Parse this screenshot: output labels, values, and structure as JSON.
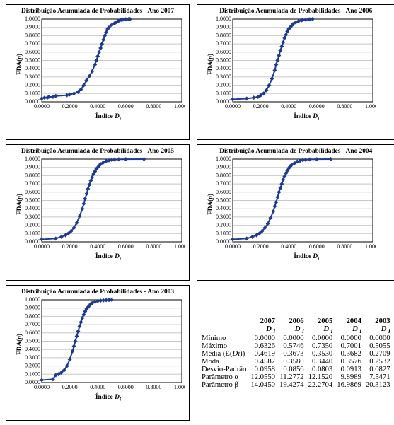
{
  "colors": {
    "series": "#1f3b8f",
    "grid": "#c8c8c8",
    "axis": "#000000",
    "bg": "#ffffff"
  },
  "axis": {
    "xlim": [
      0.0,
      1.0
    ],
    "ylim": [
      0.0,
      1.0
    ],
    "yticks": [
      0.0,
      0.1,
      0.2,
      0.3,
      0.4,
      0.5,
      0.6,
      0.7,
      0.8,
      0.9,
      1.0
    ],
    "ytick_labels": [
      "0.0000",
      "0.1000",
      "0.2000",
      "0.3000",
      "0.4000",
      "0.5000",
      "0.6000",
      "0.7000",
      "0.8000",
      "0.9000",
      "1.0000"
    ],
    "xticks": [
      0.0,
      0.2,
      0.4,
      0.6,
      0.8,
      1.0
    ],
    "xtick_labels": [
      "0.0000",
      "0.2000",
      "0.4000",
      "0.6000",
      "0.8000",
      "1.0000"
    ],
    "ylabel_html": "FDA(<i>p</i>)",
    "xlabel_html": "Índice <i>D<sub>i</sub></i>",
    "label_fontsize": 7,
    "tick_fontsize": 6,
    "title_fontsize": 7
  },
  "plot": {
    "line_width": 2,
    "marker_size": 3,
    "marker_shape": "diamond"
  },
  "charts": [
    {
      "title": "Distribuição Acumulada de Probabilidades - Ano 2007",
      "year": 2007,
      "points": [
        [
          0.0,
          0.04
        ],
        [
          0.02,
          0.05
        ],
        [
          0.04,
          0.05
        ],
        [
          0.05,
          0.06
        ],
        [
          0.08,
          0.06
        ],
        [
          0.1,
          0.07
        ],
        [
          0.18,
          0.08
        ],
        [
          0.2,
          0.09
        ],
        [
          0.23,
          0.1
        ],
        [
          0.26,
          0.12
        ],
        [
          0.28,
          0.15
        ],
        [
          0.3,
          0.2
        ],
        [
          0.32,
          0.26
        ],
        [
          0.34,
          0.31
        ],
        [
          0.36,
          0.37
        ],
        [
          0.38,
          0.45
        ],
        [
          0.39,
          0.5
        ],
        [
          0.4,
          0.55
        ],
        [
          0.41,
          0.6
        ],
        [
          0.42,
          0.65
        ],
        [
          0.43,
          0.7
        ],
        [
          0.44,
          0.75
        ],
        [
          0.45,
          0.8
        ],
        [
          0.46,
          0.84
        ],
        [
          0.47,
          0.88
        ],
        [
          0.48,
          0.9
        ],
        [
          0.5,
          0.93
        ],
        [
          0.52,
          0.95
        ],
        [
          0.53,
          0.96
        ],
        [
          0.54,
          0.97
        ],
        [
          0.55,
          0.98
        ],
        [
          0.56,
          0.99
        ],
        [
          0.57,
          0.99
        ],
        [
          0.58,
          0.995
        ],
        [
          0.6,
          0.998
        ],
        [
          0.62,
          0.999
        ],
        [
          0.63,
          1.0
        ]
      ]
    },
    {
      "title": "Distribuição Acumulada de Probabilidades - Ano 2006",
      "year": 2006,
      "points": [
        [
          0.0,
          0.03
        ],
        [
          0.1,
          0.04
        ],
        [
          0.15,
          0.05
        ],
        [
          0.18,
          0.06
        ],
        [
          0.2,
          0.08
        ],
        [
          0.22,
          0.1
        ],
        [
          0.24,
          0.14
        ],
        [
          0.26,
          0.2
        ],
        [
          0.28,
          0.28
        ],
        [
          0.3,
          0.38
        ],
        [
          0.31,
          0.45
        ],
        [
          0.32,
          0.5
        ],
        [
          0.33,
          0.56
        ],
        [
          0.34,
          0.62
        ],
        [
          0.35,
          0.67
        ],
        [
          0.36,
          0.72
        ],
        [
          0.37,
          0.77
        ],
        [
          0.38,
          0.81
        ],
        [
          0.39,
          0.85
        ],
        [
          0.4,
          0.88
        ],
        [
          0.41,
          0.9
        ],
        [
          0.42,
          0.92
        ],
        [
          0.43,
          0.94
        ],
        [
          0.45,
          0.96
        ],
        [
          0.47,
          0.975
        ],
        [
          0.49,
          0.985
        ],
        [
          0.5,
          0.99
        ],
        [
          0.52,
          0.994
        ],
        [
          0.54,
          0.997
        ],
        [
          0.55,
          0.998
        ],
        [
          0.57,
          1.0
        ]
      ]
    },
    {
      "title": "Distribuição Acumulada de Probabilidades - Ano 2005",
      "year": 2005,
      "points": [
        [
          0.0,
          0.03
        ],
        [
          0.1,
          0.04
        ],
        [
          0.14,
          0.06
        ],
        [
          0.17,
          0.08
        ],
        [
          0.19,
          0.1
        ],
        [
          0.21,
          0.13
        ],
        [
          0.23,
          0.17
        ],
        [
          0.25,
          0.23
        ],
        [
          0.27,
          0.31
        ],
        [
          0.29,
          0.4
        ],
        [
          0.3,
          0.46
        ],
        [
          0.31,
          0.52
        ],
        [
          0.32,
          0.58
        ],
        [
          0.33,
          0.64
        ],
        [
          0.34,
          0.69
        ],
        [
          0.35,
          0.74
        ],
        [
          0.36,
          0.78
        ],
        [
          0.37,
          0.82
        ],
        [
          0.38,
          0.85
        ],
        [
          0.39,
          0.88
        ],
        [
          0.4,
          0.9
        ],
        [
          0.41,
          0.92
        ],
        [
          0.42,
          0.94
        ],
        [
          0.44,
          0.96
        ],
        [
          0.46,
          0.975
        ],
        [
          0.48,
          0.985
        ],
        [
          0.5,
          0.99
        ],
        [
          0.52,
          0.995
        ],
        [
          0.55,
          0.998
        ],
        [
          0.6,
          0.999
        ],
        [
          0.73,
          1.0
        ]
      ]
    },
    {
      "title": "Distribuição Acumulada de Probabilidades - Ano 2004",
      "year": 2004,
      "points": [
        [
          0.0,
          0.03
        ],
        [
          0.1,
          0.04
        ],
        [
          0.14,
          0.06
        ],
        [
          0.17,
          0.08
        ],
        [
          0.19,
          0.1
        ],
        [
          0.21,
          0.13
        ],
        [
          0.23,
          0.17
        ],
        [
          0.25,
          0.22
        ],
        [
          0.27,
          0.29
        ],
        [
          0.29,
          0.37
        ],
        [
          0.3,
          0.43
        ],
        [
          0.31,
          0.48
        ],
        [
          0.32,
          0.54
        ],
        [
          0.33,
          0.6
        ],
        [
          0.34,
          0.65
        ],
        [
          0.35,
          0.7
        ],
        [
          0.36,
          0.75
        ],
        [
          0.37,
          0.79
        ],
        [
          0.38,
          0.83
        ],
        [
          0.39,
          0.86
        ],
        [
          0.4,
          0.89
        ],
        [
          0.41,
          0.91
        ],
        [
          0.42,
          0.93
        ],
        [
          0.44,
          0.95
        ],
        [
          0.46,
          0.97
        ],
        [
          0.48,
          0.98
        ],
        [
          0.5,
          0.988
        ],
        [
          0.52,
          0.993
        ],
        [
          0.55,
          0.997
        ],
        [
          0.6,
          0.999
        ],
        [
          0.7,
          1.0
        ]
      ]
    },
    {
      "title": "Distribuição Acumulada de Probabilidades - Ano 2003",
      "year": 2003,
      "points": [
        [
          0.0,
          0.03
        ],
        [
          0.08,
          0.04
        ],
        [
          0.1,
          0.09
        ],
        [
          0.12,
          0.1
        ],
        [
          0.14,
          0.12
        ],
        [
          0.16,
          0.15
        ],
        [
          0.18,
          0.2
        ],
        [
          0.2,
          0.28
        ],
        [
          0.22,
          0.38
        ],
        [
          0.23,
          0.44
        ],
        [
          0.24,
          0.5
        ],
        [
          0.25,
          0.56
        ],
        [
          0.26,
          0.62
        ],
        [
          0.27,
          0.68
        ],
        [
          0.28,
          0.73
        ],
        [
          0.29,
          0.78
        ],
        [
          0.3,
          0.82
        ],
        [
          0.31,
          0.86
        ],
        [
          0.32,
          0.89
        ],
        [
          0.33,
          0.91
        ],
        [
          0.34,
          0.93
        ],
        [
          0.35,
          0.95
        ],
        [
          0.36,
          0.96
        ],
        [
          0.38,
          0.975
        ],
        [
          0.4,
          0.985
        ],
        [
          0.42,
          0.99
        ],
        [
          0.44,
          0.994
        ],
        [
          0.46,
          0.997
        ],
        [
          0.48,
          0.998
        ],
        [
          0.5,
          1.0
        ]
      ]
    }
  ],
  "stats": {
    "years": [
      "2007",
      "2006",
      "2005",
      "2004",
      "2003"
    ],
    "sub_html": "<i>D</i> <sub><i>i</i></sub>",
    "rows": [
      {
        "label": "Mínimo",
        "vals": [
          "0.0000",
          "0.0000",
          "0.0000",
          "0.0000",
          "0.0000"
        ]
      },
      {
        "label": "Máximo",
        "vals": [
          "0.6326",
          "0.5746",
          "0.7350",
          "0.7001",
          "0.5055"
        ]
      },
      {
        "label_html": "Média (E(<i>Di</i>))",
        "vals": [
          "0.4619",
          "0.3673",
          "0.3530",
          "0.3682",
          "0.2709"
        ]
      },
      {
        "label": "Moda",
        "vals": [
          "0.4587",
          "0.3580",
          "0.3440",
          "0.3576",
          "0.2532"
        ]
      },
      {
        "label": "Desvio-Padrão",
        "vals": [
          "0.0958",
          "0.0856",
          "0.0803",
          "0.0913",
          "0.0827"
        ]
      },
      {
        "label": "Parâmetro α",
        "vals": [
          "12.0550",
          "11.2772",
          "12.1520",
          "9.8989",
          "7.5471"
        ]
      },
      {
        "label": "Parâmetro β",
        "vals": [
          "14.0450",
          "19.4274",
          "22.2704",
          "16.9869",
          "20.3123"
        ]
      }
    ],
    "label_fontsize": 8,
    "value_fontsize": 8
  }
}
